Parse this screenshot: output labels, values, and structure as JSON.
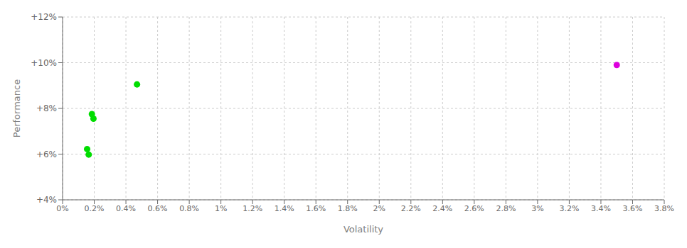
{
  "chart_data": {
    "type": "scatter",
    "xlabel": "Volatility",
    "ylabel": "Performance",
    "xlim": [
      0.0,
      0.038
    ],
    "ylim": [
      0.04,
      0.12
    ],
    "xticks": [
      {
        "value": 0.0,
        "label": "0%"
      },
      {
        "value": 0.002,
        "label": "0.2%"
      },
      {
        "value": 0.004,
        "label": "0.4%"
      },
      {
        "value": 0.006,
        "label": "0.6%"
      },
      {
        "value": 0.008,
        "label": "0.8%"
      },
      {
        "value": 0.01,
        "label": "1%"
      },
      {
        "value": 0.012,
        "label": "1.2%"
      },
      {
        "value": 0.014,
        "label": "1.4%"
      },
      {
        "value": 0.016,
        "label": "1.6%"
      },
      {
        "value": 0.018,
        "label": "1.8%"
      },
      {
        "value": 0.02,
        "label": "2%"
      },
      {
        "value": 0.022,
        "label": "2.2%"
      },
      {
        "value": 0.024,
        "label": "2.4%"
      },
      {
        "value": 0.026,
        "label": "2.6%"
      },
      {
        "value": 0.028,
        "label": "2.8%"
      },
      {
        "value": 0.03,
        "label": "3%"
      },
      {
        "value": 0.032,
        "label": "3.2%"
      },
      {
        "value": 0.034,
        "label": "3.4%"
      },
      {
        "value": 0.036,
        "label": "3.6%"
      },
      {
        "value": 0.038,
        "label": "3.8%"
      }
    ],
    "yticks": [
      {
        "value": 0.04,
        "label": "+4%"
      },
      {
        "value": 0.06,
        "label": "+6%"
      },
      {
        "value": 0.08,
        "label": "+8%"
      },
      {
        "value": 0.1,
        "label": "+10%"
      },
      {
        "value": 0.12,
        "label": "+12%"
      }
    ],
    "grid": true,
    "series": [
      {
        "color": "#00dd00",
        "x": [
          0.00155,
          0.00165,
          0.00185,
          0.00195,
          0.0047
        ],
        "values": [
          0.0622,
          0.0598,
          0.0775,
          0.0755,
          0.0905
        ]
      },
      {
        "color": "#dd00dd",
        "x": [
          0.035
        ],
        "values": [
          0.099
        ]
      }
    ]
  }
}
